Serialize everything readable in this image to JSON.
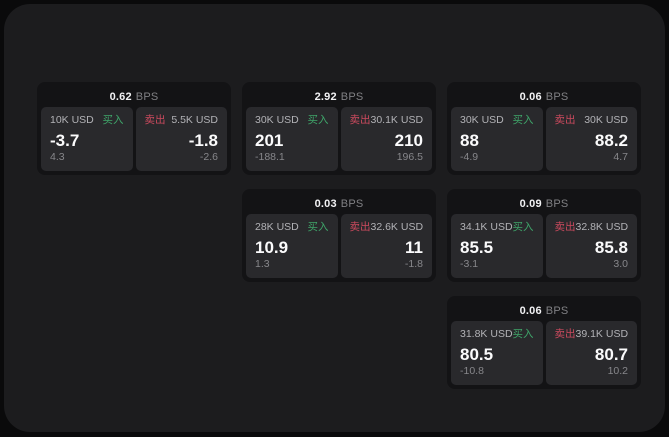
{
  "colors": {
    "surface_bg": "#1c1c1e",
    "card_bg": "#131315",
    "panel_bg": "#29292c",
    "buy_accent": "#3fa56a",
    "sell_accent": "#cc4a5e"
  },
  "labels": {
    "bps_suffix": "BPS",
    "buy": "买入",
    "sell": "卖出"
  },
  "cards": [
    {
      "row": 1,
      "col": 1,
      "bps": "0.62",
      "buy": {
        "size": "10K USD",
        "price": "-3.7",
        "secondary": "4.3"
      },
      "sell": {
        "size": "5.5K USD",
        "price": "-1.8",
        "secondary": "-2.6"
      }
    },
    {
      "row": 1,
      "col": 2,
      "bps": "2.92",
      "buy": {
        "size": "30K USD",
        "price": "201",
        "secondary": "-188.1"
      },
      "sell": {
        "size": "30.1K USD",
        "price": "210",
        "secondary": "196.5"
      }
    },
    {
      "row": 1,
      "col": 3,
      "bps": "0.06",
      "buy": {
        "size": "30K USD",
        "price": "88",
        "secondary": "-4.9"
      },
      "sell": {
        "size": "30K USD",
        "price": "88.2",
        "secondary": "4.7"
      }
    },
    {
      "row": 2,
      "col": 2,
      "bps": "0.03",
      "buy": {
        "size": "28K USD",
        "price": "10.9",
        "secondary": "1.3"
      },
      "sell": {
        "size": "32.6K USD",
        "price": "11",
        "secondary": "-1.8"
      }
    },
    {
      "row": 2,
      "col": 3,
      "bps": "0.09",
      "buy": {
        "size": "34.1K USD",
        "price": "85.5",
        "secondary": "-3.1"
      },
      "sell": {
        "size": "32.8K USD",
        "price": "85.8",
        "secondary": "3.0"
      }
    },
    {
      "row": 3,
      "col": 3,
      "bps": "0.06",
      "buy": {
        "size": "31.8K USD",
        "price": "80.5",
        "secondary": "-10.8"
      },
      "sell": {
        "size": "39.1K USD",
        "price": "80.7",
        "secondary": "10.2"
      }
    }
  ]
}
